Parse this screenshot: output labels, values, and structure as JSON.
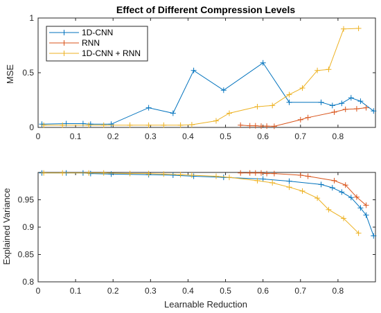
{
  "chart_data": [
    {
      "type": "line",
      "title": "Effect of Different Compression Levels",
      "xlabel": "",
      "ylabel": "MSE",
      "xlim": [
        0,
        0.9
      ],
      "ylim": [
        0,
        1
      ],
      "x_ticks": [
        "0",
        "0.1",
        "0.2",
        "0.3",
        "0.4",
        "0.5",
        "0.6",
        "0.7",
        "0.8"
      ],
      "y_ticks": [
        "0",
        "0.5",
        "1"
      ],
      "legend_position": "top-left",
      "series": [
        {
          "name": "1D-CNN",
          "color": "#0072BD",
          "x": [
            0.01,
            0.075,
            0.12,
            0.14,
            0.195,
            0.295,
            0.36,
            0.415,
            0.495,
            0.6,
            0.67,
            0.755,
            0.785,
            0.81,
            0.835,
            0.86,
            0.895
          ],
          "y": [
            0.03,
            0.035,
            0.035,
            0.03,
            0.03,
            0.18,
            0.13,
            0.52,
            0.34,
            0.59,
            0.23,
            0.23,
            0.2,
            0.22,
            0.27,
            0.24,
            0.15
          ]
        },
        {
          "name": "RNN",
          "color": "#D95319",
          "x": [
            0.54,
            0.565,
            0.58,
            0.595,
            0.61,
            0.63,
            0.7,
            0.72,
            0.79,
            0.82,
            0.85,
            0.875
          ],
          "y": [
            0.02,
            0.015,
            0.015,
            0.012,
            0.012,
            0.01,
            0.07,
            0.09,
            0.14,
            0.165,
            0.17,
            0.18
          ]
        },
        {
          "name": "1D-CNN + RNN",
          "color": "#EDB120",
          "x": [
            0.015,
            0.065,
            0.135,
            0.175,
            0.245,
            0.295,
            0.335,
            0.38,
            0.41,
            0.475,
            0.51,
            0.585,
            0.625,
            0.67,
            0.705,
            0.745,
            0.775,
            0.815,
            0.855
          ],
          "y": [
            0.02,
            0.02,
            0.02,
            0.02,
            0.02,
            0.02,
            0.02,
            0.02,
            0.025,
            0.06,
            0.13,
            0.19,
            0.2,
            0.3,
            0.36,
            0.52,
            0.53,
            0.9,
            0.905
          ]
        }
      ]
    },
    {
      "type": "line",
      "title": "",
      "xlabel": "Learnable Reduction",
      "ylabel": "Explained Variance",
      "xlim": [
        0,
        0.9
      ],
      "ylim": [
        0.8,
        1.0
      ],
      "x_ticks": [
        "0",
        "0.1",
        "0.2",
        "0.3",
        "0.4",
        "0.5",
        "0.6",
        "0.7",
        "0.8"
      ],
      "y_ticks": [
        "0.8",
        "0.85",
        "0.9",
        "0.95"
      ],
      "series": [
        {
          "name": "1D-CNN",
          "color": "#0072BD",
          "x": [
            0.01,
            0.075,
            0.12,
            0.14,
            0.195,
            0.295,
            0.36,
            0.415,
            0.495,
            0.6,
            0.67,
            0.755,
            0.785,
            0.81,
            0.835,
            0.86,
            0.875,
            0.895
          ],
          "y": [
            0.999,
            0.999,
            0.999,
            0.998,
            0.997,
            0.996,
            0.995,
            0.993,
            0.991,
            0.988,
            0.984,
            0.978,
            0.972,
            0.964,
            0.954,
            0.935,
            0.922,
            0.884
          ]
        },
        {
          "name": "RNN",
          "color": "#D95319",
          "x": [
            0.54,
            0.565,
            0.58,
            0.595,
            0.61,
            0.63,
            0.7,
            0.72,
            0.79,
            0.82,
            0.85,
            0.875
          ],
          "y": [
            0.999,
            0.999,
            0.999,
            0.999,
            0.998,
            0.998,
            0.995,
            0.993,
            0.985,
            0.977,
            0.955,
            0.94
          ]
        },
        {
          "name": "1D-CNN + RNN",
          "color": "#EDB120",
          "x": [
            0.015,
            0.065,
            0.135,
            0.175,
            0.245,
            0.295,
            0.335,
            0.38,
            0.41,
            0.475,
            0.51,
            0.585,
            0.625,
            0.67,
            0.705,
            0.745,
            0.775,
            0.815,
            0.855
          ],
          "y": [
            0.999,
            0.999,
            0.999,
            0.999,
            0.998,
            0.998,
            0.997,
            0.996,
            0.995,
            0.993,
            0.991,
            0.985,
            0.981,
            0.973,
            0.966,
            0.953,
            0.932,
            0.916,
            0.889
          ]
        }
      ]
    }
  ]
}
